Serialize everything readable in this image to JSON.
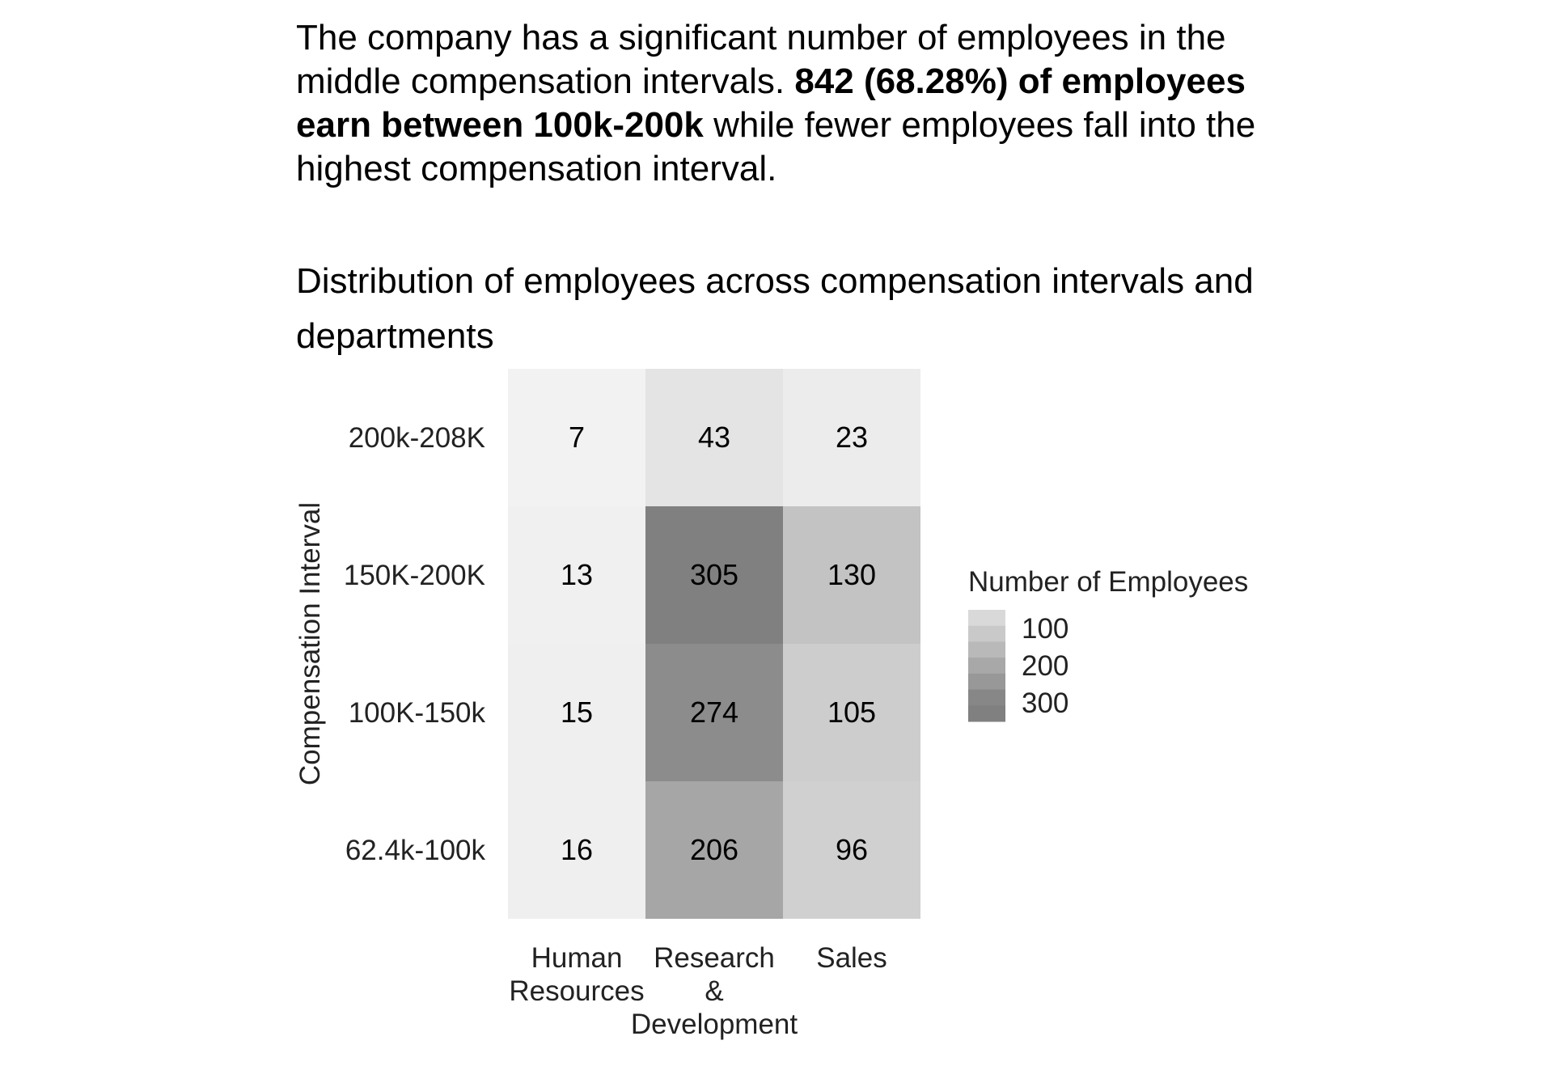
{
  "summary": {
    "part1": "The company has a significant number of employees in the middle compensation intervals. ",
    "bold": "842 (68.28%) of employees earn between 100k-200k",
    "part2": " while fewer employees fall into the highest compensation interval."
  },
  "chart_data": {
    "type": "heatmap",
    "title": "Distribution of employees across compensation intervals and departments",
    "xlabel": "",
    "ylabel": "Compensation Interval",
    "x_categories": [
      [
        "Human",
        "Resources"
      ],
      [
        "Research",
        "&",
        "Development"
      ],
      [
        "Sales"
      ]
    ],
    "y_categories": [
      "200k-208K",
      "150K-200K",
      "100K-150k",
      "62.4k-100k"
    ],
    "values": [
      [
        7,
        43,
        23
      ],
      [
        13,
        305,
        130
      ],
      [
        15,
        274,
        105
      ],
      [
        16,
        206,
        96
      ]
    ],
    "color_scale": {
      "low": "#f2f2f2",
      "high": "#808080",
      "min": 7,
      "max": 305
    },
    "legend": {
      "title": "Number of Employees",
      "placement": "right",
      "ticks": [
        100,
        200,
        300
      ]
    },
    "grid": false
  }
}
